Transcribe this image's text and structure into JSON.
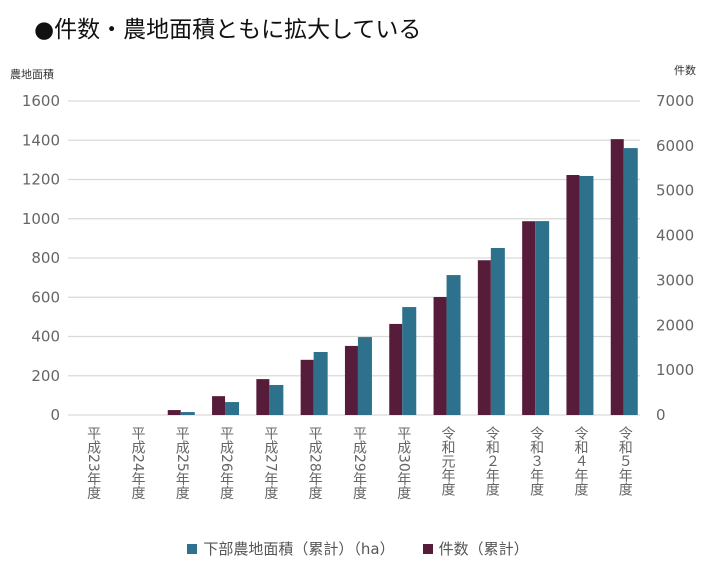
{
  "title": "●件数・農地面積ともに拡大している",
  "chart_data": {
    "type": "bar",
    "title": "●件数・農地面積ともに拡大している",
    "categories": [
      "平成23年度",
      "平成24年度",
      "平成25年度",
      "平成26年度",
      "平成27年度",
      "平成28年度",
      "平成29年度",
      "平成30年度",
      "令和元年度",
      "令和２年度",
      "令和３年度",
      "令和４年度",
      "令和５年度"
    ],
    "series": [
      {
        "name": "件数（累計）",
        "axis": "right",
        "color": "#561c3a",
        "values": [
          0,
          0,
          110,
          420,
          800,
          1230,
          1540,
          2030,
          2630,
          3450,
          4320,
          5350,
          6150
        ]
      },
      {
        "name": "下部農地面積（累計）（ha）",
        "axis": "left",
        "color": "#2d718d",
        "values": [
          0,
          0,
          15,
          66,
          153,
          321,
          397,
          550,
          713,
          851,
          988,
          1218,
          1360
        ]
      }
    ],
    "ylabel": "農地面積",
    "y2label": "件数",
    "ylim": [
      0,
      1600
    ],
    "y2lim": [
      0,
      7000
    ],
    "yticks": [
      0,
      200,
      400,
      600,
      800,
      1000,
      1200,
      1400,
      1600
    ],
    "y2ticks": [
      0,
      1000,
      2000,
      3000,
      4000,
      5000,
      6000,
      7000
    ],
    "grid": true,
    "legend": "bottom"
  }
}
